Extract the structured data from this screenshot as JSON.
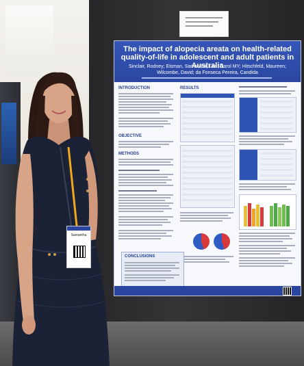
{
  "poster": {
    "title": "The impact of alopecia areata on health-related quality-of-life in adolescent and adult patients in Australia",
    "authors": "Sinclair, Rodney; Eisman, Samantha; Lee, Carol MY; Hitschfeld, Maureen; Wilcombe, David; da Fonseca Pereira, Candida",
    "sections": {
      "introduction": "INTRODUCTION",
      "results": "RESULTS",
      "objective": "OBJECTIVE",
      "methods": "METHODS",
      "conclusions": "CONCLUSIONS"
    }
  },
  "badge": {
    "name": "Samantha"
  },
  "colors": {
    "poster_header": "#2a46a0",
    "dress": "#1c2235",
    "lanyard": "#f2a81d",
    "booth": "#2e2e30"
  }
}
